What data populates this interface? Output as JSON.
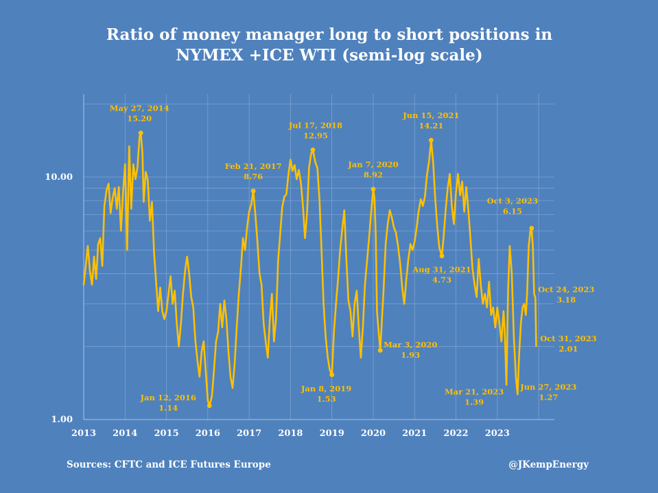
{
  "chart_data": {
    "type": "line",
    "title_lines": [
      "Ratio of money manager long to short positions in",
      "NYMEX +ICE WTI (semi-log scale)"
    ],
    "x_ticks": [
      "2013",
      "2014",
      "2015",
      "2016",
      "2017",
      "2018",
      "2019",
      "2020",
      "2021",
      "2022",
      "2023"
    ],
    "x_range": [
      2013,
      2024.38
    ],
    "y_scale": "log",
    "y_ticks": [
      {
        "value": 1,
        "label": "1.00"
      },
      {
        "value": 10,
        "label": "10.00"
      }
    ],
    "y_range": [
      1,
      22
    ],
    "grid": true,
    "series": [
      {
        "points": [
          [
            2013.0,
            3.6
          ],
          [
            2013.05,
            4.3
          ],
          [
            2013.1,
            5.2
          ],
          [
            2013.15,
            4.1
          ],
          [
            2013.2,
            3.6
          ],
          [
            2013.25,
            4.7
          ],
          [
            2013.3,
            3.8
          ],
          [
            2013.35,
            5.3
          ],
          [
            2013.4,
            5.6
          ],
          [
            2013.45,
            4.3
          ],
          [
            2013.5,
            7.6
          ],
          [
            2013.55,
            8.8
          ],
          [
            2013.6,
            9.4
          ],
          [
            2013.65,
            7.1
          ],
          [
            2013.7,
            8.2
          ],
          [
            2013.75,
            9.0
          ],
          [
            2013.8,
            7.4
          ],
          [
            2013.85,
            9.1
          ],
          [
            2013.9,
            6.0
          ],
          [
            2013.95,
            8.6
          ],
          [
            2014.0,
            11.3
          ],
          [
            2014.05,
            5.0
          ],
          [
            2014.1,
            13.4
          ],
          [
            2014.15,
            7.4
          ],
          [
            2014.2,
            11.3
          ],
          [
            2014.25,
            9.8
          ],
          [
            2014.3,
            11.0
          ],
          [
            2014.35,
            14.7
          ],
          [
            2014.38,
            15.2
          ],
          [
            2014.42,
            12.6
          ],
          [
            2014.45,
            7.9
          ],
          [
            2014.5,
            10.5
          ],
          [
            2014.55,
            9.7
          ],
          [
            2014.6,
            6.6
          ],
          [
            2014.65,
            7.9
          ],
          [
            2014.7,
            4.9
          ],
          [
            2014.75,
            3.7
          ],
          [
            2014.8,
            2.8
          ],
          [
            2014.85,
            3.5
          ],
          [
            2014.9,
            2.8
          ],
          [
            2014.95,
            2.6
          ],
          [
            2015.0,
            2.8
          ],
          [
            2015.05,
            3.3
          ],
          [
            2015.1,
            3.9
          ],
          [
            2015.15,
            3.0
          ],
          [
            2015.2,
            3.4
          ],
          [
            2015.25,
            2.5
          ],
          [
            2015.3,
            2.0
          ],
          [
            2015.35,
            2.5
          ],
          [
            2015.4,
            3.3
          ],
          [
            2015.45,
            4.1
          ],
          [
            2015.5,
            4.7
          ],
          [
            2015.55,
            4.0
          ],
          [
            2015.6,
            3.2
          ],
          [
            2015.65,
            2.9
          ],
          [
            2015.7,
            2.1
          ],
          [
            2015.75,
            1.75
          ],
          [
            2015.8,
            1.5
          ],
          [
            2015.85,
            1.9
          ],
          [
            2015.9,
            2.1
          ],
          [
            2015.95,
            1.6
          ],
          [
            2016.0,
            1.2
          ],
          [
            2016.04,
            1.14
          ],
          [
            2016.1,
            1.25
          ],
          [
            2016.15,
            1.6
          ],
          [
            2016.2,
            2.1
          ],
          [
            2016.25,
            2.3
          ],
          [
            2016.3,
            3.0
          ],
          [
            2016.35,
            2.4
          ],
          [
            2016.4,
            3.1
          ],
          [
            2016.45,
            2.6
          ],
          [
            2016.5,
            1.9
          ],
          [
            2016.55,
            1.5
          ],
          [
            2016.6,
            1.35
          ],
          [
            2016.65,
            1.7
          ],
          [
            2016.7,
            2.4
          ],
          [
            2016.75,
            3.3
          ],
          [
            2016.8,
            4.2
          ],
          [
            2016.85,
            5.6
          ],
          [
            2016.9,
            5.0
          ],
          [
            2016.95,
            6.2
          ],
          [
            2017.0,
            7.2
          ],
          [
            2017.05,
            7.7
          ],
          [
            2017.1,
            8.76
          ],
          [
            2017.15,
            7.0
          ],
          [
            2017.2,
            5.4
          ],
          [
            2017.25,
            4.0
          ],
          [
            2017.3,
            3.6
          ],
          [
            2017.35,
            2.5
          ],
          [
            2017.4,
            2.1
          ],
          [
            2017.45,
            1.8
          ],
          [
            2017.5,
            2.6
          ],
          [
            2017.55,
            3.3
          ],
          [
            2017.6,
            2.1
          ],
          [
            2017.65,
            2.6
          ],
          [
            2017.7,
            4.5
          ],
          [
            2017.75,
            5.8
          ],
          [
            2017.8,
            7.5
          ],
          [
            2017.85,
            8.3
          ],
          [
            2017.9,
            8.5
          ],
          [
            2017.95,
            10.3
          ],
          [
            2018.0,
            11.8
          ],
          [
            2018.05,
            10.6
          ],
          [
            2018.1,
            11.2
          ],
          [
            2018.15,
            9.8
          ],
          [
            2018.2,
            10.7
          ],
          [
            2018.25,
            9.5
          ],
          [
            2018.3,
            7.6
          ],
          [
            2018.35,
            5.6
          ],
          [
            2018.4,
            7.1
          ],
          [
            2018.45,
            11.0
          ],
          [
            2018.5,
            12.5
          ],
          [
            2018.54,
            12.95
          ],
          [
            2018.6,
            11.5
          ],
          [
            2018.65,
            10.9
          ],
          [
            2018.7,
            8.1
          ],
          [
            2018.75,
            5.0
          ],
          [
            2018.8,
            3.0
          ],
          [
            2018.85,
            2.2
          ],
          [
            2018.9,
            1.8
          ],
          [
            2018.95,
            1.6
          ],
          [
            2019.0,
            1.53
          ],
          [
            2019.05,
            2.3
          ],
          [
            2019.1,
            3.0
          ],
          [
            2019.15,
            3.8
          ],
          [
            2019.2,
            5.0
          ],
          [
            2019.25,
            6.1
          ],
          [
            2019.3,
            7.3
          ],
          [
            2019.35,
            4.6
          ],
          [
            2019.4,
            3.1
          ],
          [
            2019.45,
            2.8
          ],
          [
            2019.5,
            2.2
          ],
          [
            2019.55,
            3.0
          ],
          [
            2019.6,
            3.4
          ],
          [
            2019.65,
            2.4
          ],
          [
            2019.7,
            1.8
          ],
          [
            2019.75,
            2.4
          ],
          [
            2019.8,
            3.6
          ],
          [
            2019.85,
            4.5
          ],
          [
            2019.9,
            5.6
          ],
          [
            2019.95,
            7.2
          ],
          [
            2020.0,
            8.92
          ],
          [
            2020.03,
            8.2
          ],
          [
            2020.06,
            5.8
          ],
          [
            2020.09,
            2.8
          ],
          [
            2020.14,
            2.2
          ],
          [
            2020.17,
            1.93
          ],
          [
            2020.2,
            2.4
          ],
          [
            2020.25,
            3.4
          ],
          [
            2020.3,
            5.3
          ],
          [
            2020.35,
            6.4
          ],
          [
            2020.4,
            7.3
          ],
          [
            2020.45,
            6.8
          ],
          [
            2020.5,
            6.2
          ],
          [
            2020.55,
            5.9
          ],
          [
            2020.6,
            5.2
          ],
          [
            2020.65,
            4.4
          ],
          [
            2020.7,
            3.5
          ],
          [
            2020.75,
            3.0
          ],
          [
            2020.8,
            3.8
          ],
          [
            2020.85,
            4.6
          ],
          [
            2020.9,
            5.3
          ],
          [
            2020.95,
            5.0
          ],
          [
            2021.0,
            5.4
          ],
          [
            2021.05,
            6.2
          ],
          [
            2021.1,
            7.3
          ],
          [
            2021.15,
            8.1
          ],
          [
            2021.2,
            7.6
          ],
          [
            2021.25,
            8.3
          ],
          [
            2021.3,
            10.2
          ],
          [
            2021.35,
            11.6
          ],
          [
            2021.4,
            14.2
          ],
          [
            2021.45,
            11.4
          ],
          [
            2021.5,
            8.1
          ],
          [
            2021.55,
            6.2
          ],
          [
            2021.6,
            5.1
          ],
          [
            2021.66,
            4.73
          ],
          [
            2021.7,
            5.6
          ],
          [
            2021.75,
            7.3
          ],
          [
            2021.8,
            9.0
          ],
          [
            2021.85,
            10.3
          ],
          [
            2021.9,
            7.6
          ],
          [
            2021.95,
            6.4
          ],
          [
            2022.0,
            8.6
          ],
          [
            2022.05,
            10.3
          ],
          [
            2022.1,
            8.4
          ],
          [
            2022.15,
            9.6
          ],
          [
            2022.2,
            7.2
          ],
          [
            2022.25,
            9.1
          ],
          [
            2022.3,
            7.3
          ],
          [
            2022.35,
            5.6
          ],
          [
            2022.4,
            4.2
          ],
          [
            2022.45,
            3.6
          ],
          [
            2022.5,
            3.2
          ],
          [
            2022.55,
            4.6
          ],
          [
            2022.6,
            3.6
          ],
          [
            2022.65,
            3.0
          ],
          [
            2022.7,
            3.3
          ],
          [
            2022.75,
            2.9
          ],
          [
            2022.8,
            3.7
          ],
          [
            2022.85,
            2.7
          ],
          [
            2022.9,
            2.9
          ],
          [
            2022.95,
            2.4
          ],
          [
            2023.0,
            2.9
          ],
          [
            2023.05,
            2.5
          ],
          [
            2023.1,
            2.1
          ],
          [
            2023.15,
            2.8
          ],
          [
            2023.18,
            2.3
          ],
          [
            2023.22,
            1.39
          ],
          [
            2023.26,
            3.4
          ],
          [
            2023.3,
            5.2
          ],
          [
            2023.35,
            4.0
          ],
          [
            2023.4,
            2.2
          ],
          [
            2023.45,
            1.5
          ],
          [
            2023.49,
            1.27
          ],
          [
            2023.53,
            1.9
          ],
          [
            2023.57,
            2.5
          ],
          [
            2023.61,
            2.9
          ],
          [
            2023.65,
            3.0
          ],
          [
            2023.69,
            2.7
          ],
          [
            2023.72,
            3.3
          ],
          [
            2023.76,
            5.2
          ],
          [
            2023.8,
            6.0
          ],
          [
            2023.83,
            6.15
          ],
          [
            2023.86,
            5.1
          ],
          [
            2023.89,
            3.3
          ],
          [
            2023.92,
            3.18
          ],
          [
            2023.94,
            2.01
          ]
        ]
      }
    ],
    "annotations": [
      {
        "date": "May 27, 2014",
        "value": "15.20",
        "x": 2014.38,
        "y": 15.2
      },
      {
        "date": "Feb 21, 2017",
        "value": "8.76",
        "x": 2017.1,
        "y": 8.76
      },
      {
        "date": "Jul 17, 2018",
        "value": "12.95",
        "x": 2018.54,
        "y": 12.95
      },
      {
        "date": "Jan 7, 2020",
        "value": "8.92",
        "x": 2020.0,
        "y": 8.92
      },
      {
        "date": "Jun 15, 2021",
        "value": "14.21",
        "x": 2021.4,
        "y": 14.2
      },
      {
        "date": "Oct 3, 2023",
        "value": "6.15",
        "x": 2023.83,
        "y": 6.15
      },
      {
        "date": "Aug 31, 2021",
        "value": "4.73",
        "x": 2021.66,
        "y": 4.73
      },
      {
        "date": "Oct 24, 2023",
        "value": "3.18",
        "x": 2023.92,
        "y": 3.18
      },
      {
        "date": "Mar 3, 2020",
        "value": "1.93",
        "x": 2020.17,
        "y": 1.93
      },
      {
        "date": "Oct 31, 2023",
        "value": "2.01",
        "x": 2023.94,
        "y": 2.01
      },
      {
        "date": "Jan 8, 2019",
        "value": "1.53",
        "x": 2019.0,
        "y": 1.53
      },
      {
        "date": "Mar 21, 2023",
        "value": "1.39",
        "x": 2023.22,
        "y": 1.39
      },
      {
        "date": "Jun 27, 2023",
        "value": "1.27",
        "x": 2023.49,
        "y": 1.27
      },
      {
        "date": "Jan 12, 2016",
        "value": "1.14",
        "x": 2016.04,
        "y": 1.14
      }
    ],
    "line_color": "#ffc000",
    "background_color": "#4f81bd"
  },
  "footer": {
    "sources": "Sources: CFTC and ICE Futures Europe",
    "handle": "@JKempEnergy"
  }
}
